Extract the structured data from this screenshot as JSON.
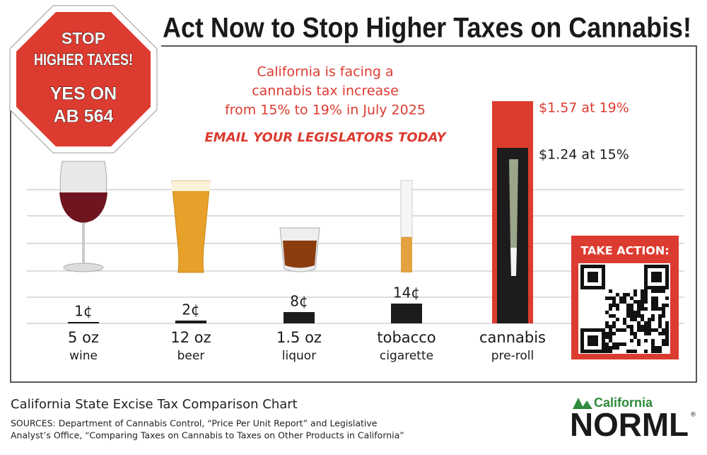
{
  "chart_data": {
    "type": "bar",
    "title": "Act Now to Stop Higher Taxes on Cannabis!",
    "subtitle": [
      "California is facing a",
      "cannabis tax increase",
      "from 15% to 19% in July 2025"
    ],
    "call_to_action": "EMAIL YOUR LEGISLATORS TODAY",
    "categories": [
      "5 oz",
      "12 oz",
      "1.5 oz",
      "tobacco",
      "cannabis"
    ],
    "category_sublabels": [
      "wine",
      "beer",
      "liquor",
      "cigarette",
      "pre-roll"
    ],
    "series": [
      {
        "color": "#1c1c1c",
        "values": [
          1,
          2,
          8,
          14,
          124
        ],
        "value_labels": [
          "1¢",
          "2¢",
          "8¢",
          "14¢",
          "$1.24 at 15%"
        ]
      },
      {
        "color": "#dc3b30",
        "values": [
          null,
          null,
          null,
          null,
          157
        ],
        "value_labels": [
          null,
          null,
          null,
          null,
          "$1.57 at 19%"
        ]
      }
    ],
    "ylim": [
      0,
      160
    ],
    "grid": true
  },
  "sign": {
    "lines": [
      "STOP",
      "HIGHER TAXES!",
      "YES ON",
      "AB 564"
    ]
  },
  "take_action": "TAKE ACTION:",
  "footer": {
    "caption": "California State Excise Tax Comparison Chart",
    "sources": [
      "SOURCES: Department of Cannabis Control, “Price Per Unit Report” and Legislative",
      "Analyst’s Office, “Comparing Taxes on Cannabis to Taxes on Other Products in California”"
    ]
  },
  "logo": {
    "region": "California",
    "name": "NORML",
    "mark": "®"
  }
}
